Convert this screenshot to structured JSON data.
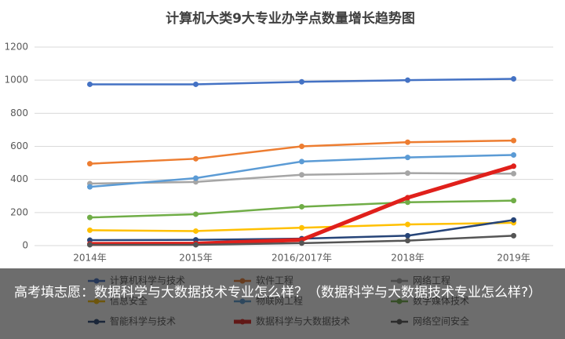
{
  "chart_data": {
    "type": "line",
    "title": "计算机大类9大专业办学点数量增长趋势图",
    "categories": [
      "2014年",
      "2015年",
      "2016/2017年",
      "2018年",
      "2019年"
    ],
    "series": [
      {
        "name": "计算机科学与技术",
        "color": "#4472c4",
        "values": [
          975,
          975,
          990,
          1000,
          1008
        ]
      },
      {
        "name": "软件工程",
        "color": "#ed7d31",
        "values": [
          495,
          525,
          600,
          625,
          635
        ]
      },
      {
        "name": "网络工程",
        "color": "#a5a5a5",
        "values": [
          375,
          385,
          428,
          438,
          435
        ]
      },
      {
        "name": "信息安全",
        "color": "#ffc000",
        "values": [
          93,
          88,
          108,
          128,
          138
        ]
      },
      {
        "name": "物联网工程",
        "color": "#5b9bd5",
        "values": [
          355,
          408,
          508,
          533,
          548
        ]
      },
      {
        "name": "数字媒体技术",
        "color": "#70ad47",
        "values": [
          170,
          190,
          235,
          262,
          272
        ]
      },
      {
        "name": "智能科学与技术",
        "color": "#264478",
        "values": [
          33,
          35,
          42,
          60,
          155
        ]
      },
      {
        "name": "数据科学与大数据技术",
        "color": "#e0201b",
        "values": [
          10,
          12,
          35,
          290,
          480
        ]
      },
      {
        "name": "网络空间安全",
        "color": "#555555",
        "values": [
          5,
          5,
          15,
          30,
          60
        ]
      }
    ],
    "ylim": [
      0,
      1200
    ],
    "yticks": [
      0,
      200,
      400,
      600,
      800,
      1000,
      {
        "value": 1200,
        "label": "1200"
      }
    ],
    "grid": true,
    "legend": "bottom"
  },
  "caption": "高考填志愿：数据科学与大数据技术专业怎么样？（数据科学与大数据技术专业怎么样?）"
}
